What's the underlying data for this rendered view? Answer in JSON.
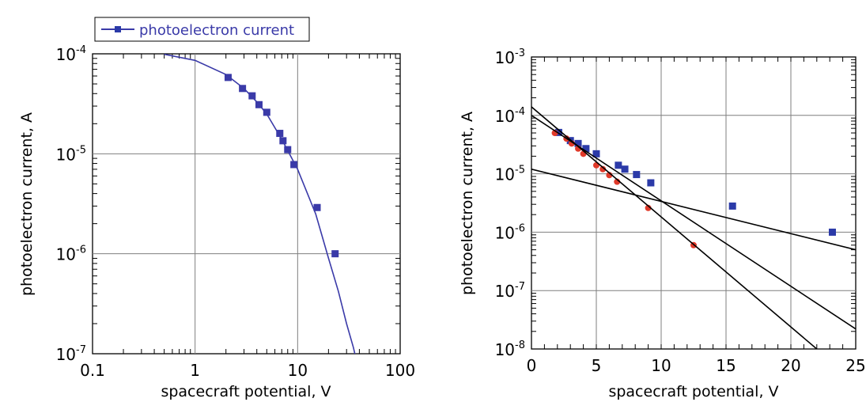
{
  "colors": {
    "fit_line": "#3a3aa8",
    "blue_points": "#2b3aa8",
    "red_points": "#e03a2a",
    "black_lines": "#000000",
    "grid": "#7f7f7f"
  },
  "chart_data": [
    {
      "type": "scatter",
      "xscale": "log",
      "yscale": "log",
      "xlabel": "spacecraft potential, V",
      "ylabel": "photoelectron current, A",
      "xlim": [
        0.1,
        100
      ],
      "ylim": [
        1e-07,
        0.0001
      ],
      "grid": true,
      "legend_position": "top-left",
      "x_ticks": [
        {
          "value": 0.1,
          "label": "0.1"
        },
        {
          "value": 1,
          "label": "1"
        },
        {
          "value": 10,
          "label": "10"
        },
        {
          "value": 100,
          "label": "100"
        }
      ],
      "y_ticks": [
        {
          "value": 1e-07,
          "base": "10",
          "exp": "-7"
        },
        {
          "value": 1e-06,
          "base": "10",
          "exp": "-6"
        },
        {
          "value": 1e-05,
          "base": "10",
          "exp": "-5"
        },
        {
          "value": 0.0001,
          "base": "10",
          "exp": "-4"
        }
      ],
      "series": [
        {
          "name": "photoelectron current",
          "color": "#3a3aa8",
          "marker": "square",
          "points": [
            {
              "x": 2.1,
              "y": 5.8e-05
            },
            {
              "x": 2.9,
              "y": 4.5e-05
            },
            {
              "x": 3.6,
              "y": 3.8e-05
            },
            {
              "x": 4.2,
              "y": 3.1e-05
            },
            {
              "x": 5.0,
              "y": 2.6e-05
            },
            {
              "x": 6.7,
              "y": 1.6e-05
            },
            {
              "x": 7.2,
              "y": 1.35e-05
            },
            {
              "x": 8.0,
              "y": 1.1e-05
            },
            {
              "x": 9.2,
              "y": 7.8e-06
            },
            {
              "x": 15.5,
              "y": 2.9e-06
            },
            {
              "x": 23.2,
              "y": 1e-06
            }
          ],
          "fit_curve": [
            {
              "x": 0.5,
              "y": 9.9e-05
            },
            {
              "x": 1,
              "y": 8.6e-05
            },
            {
              "x": 2,
              "y": 6.2e-05
            },
            {
              "x": 3,
              "y": 4.5e-05
            },
            {
              "x": 4,
              "y": 3.3e-05
            },
            {
              "x": 5,
              "y": 2.5e-05
            },
            {
              "x": 7,
              "y": 1.4e-05
            },
            {
              "x": 10,
              "y": 7e-06
            },
            {
              "x": 15,
              "y": 2.5e-06
            },
            {
              "x": 20,
              "y": 9e-07
            },
            {
              "x": 25,
              "y": 4.2e-07
            },
            {
              "x": 30,
              "y": 2e-07
            },
            {
              "x": 35,
              "y": 1.15e-07
            },
            {
              "x": 38,
              "y": 8e-08
            }
          ]
        }
      ]
    },
    {
      "type": "scatter",
      "xscale": "linear",
      "yscale": "log",
      "xlabel": "spacecraft potential, V",
      "ylabel": "photoelectron current, A",
      "xlim": [
        0,
        25
      ],
      "ylim": [
        1e-08,
        0.001
      ],
      "grid": true,
      "x_ticks": [
        {
          "value": 0,
          "label": "0"
        },
        {
          "value": 5,
          "label": "5"
        },
        {
          "value": 10,
          "label": "10"
        },
        {
          "value": 15,
          "label": "15"
        },
        {
          "value": 20,
          "label": "20"
        },
        {
          "value": 25,
          "label": "25"
        }
      ],
      "y_ticks": [
        {
          "value": 1e-08,
          "base": "10",
          "exp": "-8"
        },
        {
          "value": 1e-07,
          "base": "10",
          "exp": "-7"
        },
        {
          "value": 1e-06,
          "base": "10",
          "exp": "-6"
        },
        {
          "value": 1e-05,
          "base": "10",
          "exp": "-5"
        },
        {
          "value": 0.0001,
          "base": "10",
          "exp": "-4"
        },
        {
          "value": 0.001,
          "base": "10",
          "exp": "-3"
        }
      ],
      "series": [
        {
          "color": "#2b3aa8",
          "marker": "square",
          "points": [
            {
              "x": 2.1,
              "y": 5.1e-05
            },
            {
              "x": 3.0,
              "y": 3.7e-05
            },
            {
              "x": 3.6,
              "y": 3.3e-05
            },
            {
              "x": 4.2,
              "y": 2.7e-05
            },
            {
              "x": 5.0,
              "y": 2.2e-05
            },
            {
              "x": 6.7,
              "y": 1.4e-05
            },
            {
              "x": 7.2,
              "y": 1.2e-05
            },
            {
              "x": 8.1,
              "y": 9.7e-06
            },
            {
              "x": 9.2,
              "y": 7e-06
            },
            {
              "x": 15.5,
              "y": 2.8e-06
            },
            {
              "x": 23.2,
              "y": 1e-06
            }
          ]
        },
        {
          "color": "#e03a2a",
          "marker": "circle",
          "points": [
            {
              "x": 1.8,
              "y": 5e-05
            },
            {
              "x": 2.7,
              "y": 4e-05
            },
            {
              "x": 3.1,
              "y": 3.3e-05
            },
            {
              "x": 3.6,
              "y": 2.7e-05
            },
            {
              "x": 4.0,
              "y": 2.2e-05
            },
            {
              "x": 5.0,
              "y": 1.4e-05
            },
            {
              "x": 5.5,
              "y": 1.2e-05
            },
            {
              "x": 6.0,
              "y": 9.5e-06
            },
            {
              "x": 6.6,
              "y": 7.3e-06
            },
            {
              "x": 9.0,
              "y": 2.6e-06
            },
            {
              "x": 12.5,
              "y": 6e-07
            }
          ]
        },
        {
          "color": "#000000",
          "marker": "line",
          "points": [
            {
              "x": 0,
              "y": 0.00014
            },
            {
              "x": 22,
              "y": 1e-08
            }
          ]
        },
        {
          "color": "#000000",
          "marker": "line",
          "points": [
            {
              "x": 0,
              "y": 0.0001
            },
            {
              "x": 25,
              "y": 2.2e-08
            }
          ]
        },
        {
          "color": "#000000",
          "marker": "line",
          "points": [
            {
              "x": 0,
              "y": 1.2e-05
            },
            {
              "x": 25,
              "y": 5e-07
            }
          ]
        }
      ]
    }
  ]
}
